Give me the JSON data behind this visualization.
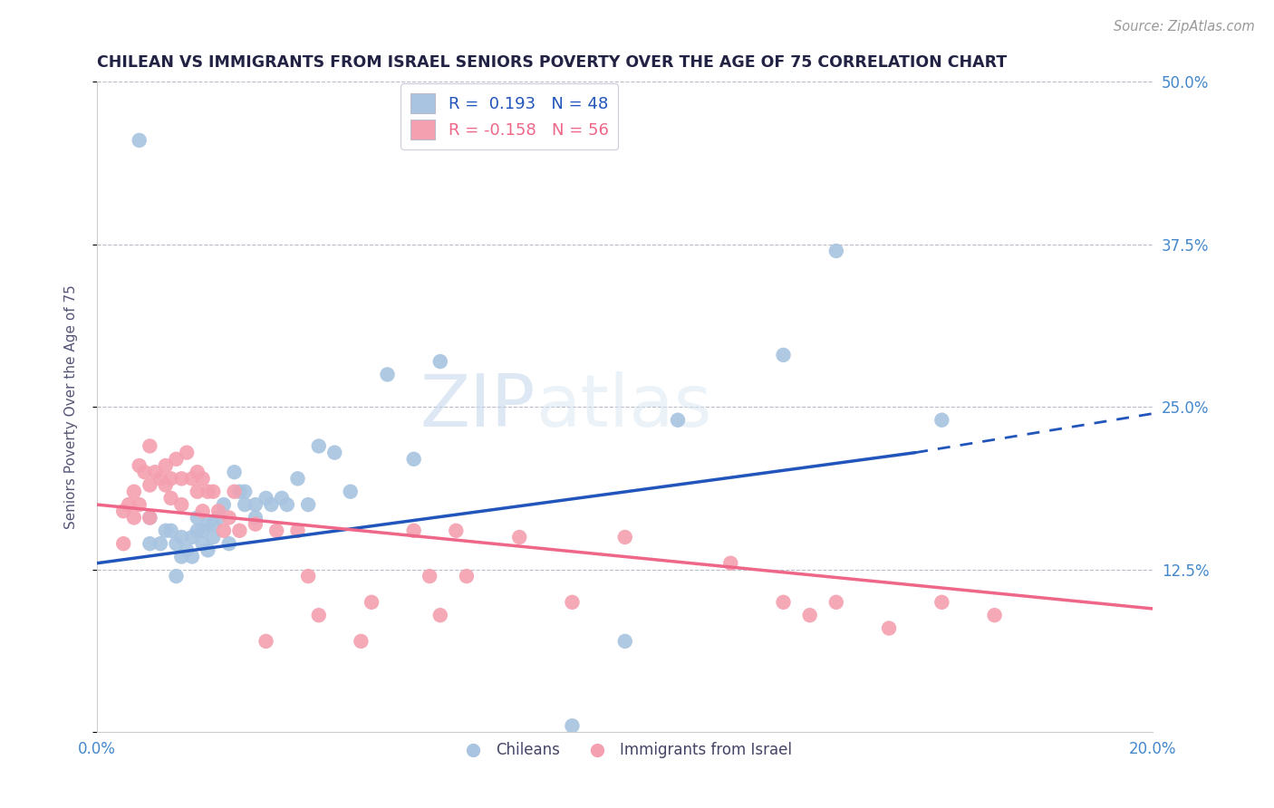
{
  "title": "CHILEAN VS IMMIGRANTS FROM ISRAEL SENIORS POVERTY OVER THE AGE OF 75 CORRELATION CHART",
  "source_text": "Source: ZipAtlas.com",
  "ylabel": "Seniors Poverty Over the Age of 75",
  "xlim": [
    0.0,
    0.2
  ],
  "ylim": [
    0.0,
    0.5
  ],
  "legend1_r": "0.193",
  "legend1_n": "48",
  "legend2_r": "-0.158",
  "legend2_n": "56",
  "chilean_color": "#a8c4e0",
  "israel_color": "#f4a0b0",
  "line_chilean_color": "#2255bb",
  "line_israel_color": "#ee6688",
  "watermark_zip": "ZIP",
  "watermark_atlas": "atlas",
  "chilean_scatter_x": [
    0.008,
    0.01,
    0.01,
    0.012,
    0.013,
    0.014,
    0.015,
    0.015,
    0.016,
    0.016,
    0.017,
    0.018,
    0.018,
    0.019,
    0.019,
    0.02,
    0.02,
    0.021,
    0.021,
    0.022,
    0.022,
    0.023,
    0.024,
    0.025,
    0.026,
    0.027,
    0.028,
    0.028,
    0.03,
    0.03,
    0.032,
    0.033,
    0.035,
    0.036,
    0.038,
    0.04,
    0.042,
    0.045,
    0.048,
    0.055,
    0.06,
    0.065,
    0.09,
    0.1,
    0.11,
    0.13,
    0.14,
    0.16
  ],
  "chilean_scatter_y": [
    0.455,
    0.145,
    0.165,
    0.145,
    0.155,
    0.155,
    0.12,
    0.145,
    0.135,
    0.15,
    0.14,
    0.135,
    0.15,
    0.155,
    0.165,
    0.145,
    0.155,
    0.14,
    0.16,
    0.15,
    0.16,
    0.165,
    0.175,
    0.145,
    0.2,
    0.185,
    0.175,
    0.185,
    0.175,
    0.165,
    0.18,
    0.175,
    0.18,
    0.175,
    0.195,
    0.175,
    0.22,
    0.215,
    0.185,
    0.275,
    0.21,
    0.285,
    0.005,
    0.07,
    0.24,
    0.29,
    0.37,
    0.24
  ],
  "israel_scatter_x": [
    0.005,
    0.005,
    0.006,
    0.007,
    0.007,
    0.008,
    0.008,
    0.009,
    0.01,
    0.01,
    0.01,
    0.011,
    0.012,
    0.013,
    0.013,
    0.014,
    0.014,
    0.015,
    0.016,
    0.016,
    0.017,
    0.018,
    0.019,
    0.019,
    0.02,
    0.02,
    0.021,
    0.022,
    0.023,
    0.024,
    0.025,
    0.026,
    0.027,
    0.03,
    0.032,
    0.034,
    0.038,
    0.04,
    0.042,
    0.05,
    0.052,
    0.06,
    0.063,
    0.065,
    0.068,
    0.07,
    0.08,
    0.09,
    0.1,
    0.12,
    0.13,
    0.135,
    0.14,
    0.15,
    0.16,
    0.17
  ],
  "israel_scatter_y": [
    0.17,
    0.145,
    0.175,
    0.185,
    0.165,
    0.205,
    0.175,
    0.2,
    0.22,
    0.19,
    0.165,
    0.2,
    0.195,
    0.205,
    0.19,
    0.195,
    0.18,
    0.21,
    0.195,
    0.175,
    0.215,
    0.195,
    0.2,
    0.185,
    0.195,
    0.17,
    0.185,
    0.185,
    0.17,
    0.155,
    0.165,
    0.185,
    0.155,
    0.16,
    0.07,
    0.155,
    0.155,
    0.12,
    0.09,
    0.07,
    0.1,
    0.155,
    0.12,
    0.09,
    0.155,
    0.12,
    0.15,
    0.1,
    0.15,
    0.13,
    0.1,
    0.09,
    0.1,
    0.08,
    0.1,
    0.09
  ],
  "chilean_line_solid": [
    [
      0.0,
      0.13
    ],
    [
      0.155,
      0.215
    ]
  ],
  "chilean_line_dashed": [
    [
      0.155,
      0.215
    ],
    [
      0.2,
      0.245
    ]
  ],
  "israel_line": [
    [
      0.0,
      0.175
    ],
    [
      0.2,
      0.095
    ]
  ]
}
